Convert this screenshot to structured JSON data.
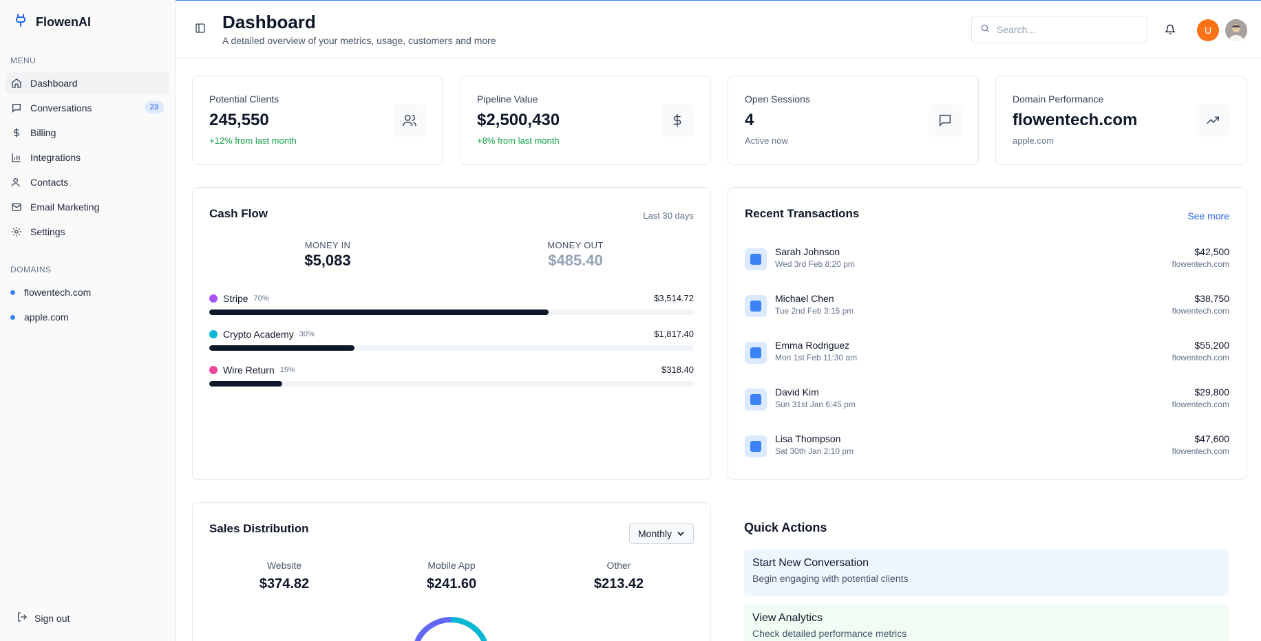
{
  "app": {
    "name": "FlowenAI"
  },
  "sidebar": {
    "menu_label": "MENU",
    "items": [
      {
        "label": "Dashboard",
        "icon": "home-icon",
        "active": true
      },
      {
        "label": "Conversations",
        "icon": "message-icon",
        "badge": "23"
      },
      {
        "label": "Billing",
        "icon": "dollar-icon"
      },
      {
        "label": "Integrations",
        "icon": "bar-chart-icon"
      },
      {
        "label": "Contacts",
        "icon": "user-icon"
      },
      {
        "label": "Email Marketing",
        "icon": "mail-icon"
      },
      {
        "label": "Settings",
        "icon": "gear-icon"
      }
    ],
    "domains_label": "DOMAINS",
    "domains": [
      "flowentech.com",
      "apple.com"
    ],
    "signout": "Sign out"
  },
  "header": {
    "title": "Dashboard",
    "subtitle": "A detailed overview of your metrics, usage, customers and more",
    "search_placeholder": "Search...",
    "avatar_initial": "U"
  },
  "stats": [
    {
      "label": "Potential Clients",
      "value": "245,550",
      "note": "+12% from last month",
      "note_color": "#16a34a",
      "icon": "users-icon"
    },
    {
      "label": "Pipeline Value",
      "value": "$2,500,430",
      "note": "+8% from last month",
      "note_color": "#16a34a",
      "icon": "dollar-icon"
    },
    {
      "label": "Open Sessions",
      "value": "4",
      "note": "Active now",
      "icon": "message-icon"
    },
    {
      "label": "Domain Performance",
      "value": "flowentech.com",
      "note": "apple.com",
      "icon": "trending-up-icon"
    }
  ],
  "cash_flow": {
    "title": "Cash Flow",
    "range": "Last 30 days",
    "money_in_label": "MONEY IN",
    "money_in": "$5,083",
    "money_out_label": "MONEY OUT",
    "money_out": "$485.40",
    "sources": [
      {
        "name": "Stripe",
        "pct": "70%",
        "fraction": 0.7,
        "amount": "$3,514.72",
        "color": "#a855f7"
      },
      {
        "name": "Crypto Academy",
        "pct": "30%",
        "fraction": 0.3,
        "amount": "$1,817.40",
        "color": "#06b6d4"
      },
      {
        "name": "Wire Return",
        "pct": "15%",
        "fraction": 0.15,
        "amount": "$318.40",
        "color": "#ec4899"
      }
    ]
  },
  "transactions": {
    "title": "Recent Transactions",
    "see_more": "See more",
    "items": [
      {
        "name": "Sarah Johnson",
        "date": "Wed 3rd Feb 8:20 pm",
        "amount": "$42,500",
        "domain": "flowentech.com"
      },
      {
        "name": "Michael Chen",
        "date": "Tue 2nd Feb 3:15 pm",
        "amount": "$38,750",
        "domain": "flowentech.com"
      },
      {
        "name": "Emma Rodriguez",
        "date": "Mon 1st Feb 11:30 am",
        "amount": "$55,200",
        "domain": "flowentech.com"
      },
      {
        "name": "David Kim",
        "date": "Sun 31st Jan 6:45 pm",
        "amount": "$29,800",
        "domain": "flowentech.com"
      },
      {
        "name": "Lisa Thompson",
        "date": "Sat 30th Jan 2:10 pm",
        "amount": "$47,600",
        "domain": "flowentech.com"
      }
    ]
  },
  "sales": {
    "title": "Sales Distribution",
    "period": "Monthly",
    "items": [
      {
        "label": "Website",
        "value": "$374.82"
      },
      {
        "label": "Mobile App",
        "value": "$241.60"
      },
      {
        "label": "Other",
        "value": "$213.42"
      }
    ],
    "ring_colors": [
      "#6366f1",
      "#06b6d4"
    ]
  },
  "quick_actions": {
    "title": "Quick Actions",
    "items": [
      {
        "title": "Start New Conversation",
        "desc": "Begin engaging with potential clients",
        "bg": "#eff6ff"
      },
      {
        "title": "View Analytics",
        "desc": "Check detailed performance metrics",
        "bg": "#f0fdf4"
      }
    ]
  }
}
